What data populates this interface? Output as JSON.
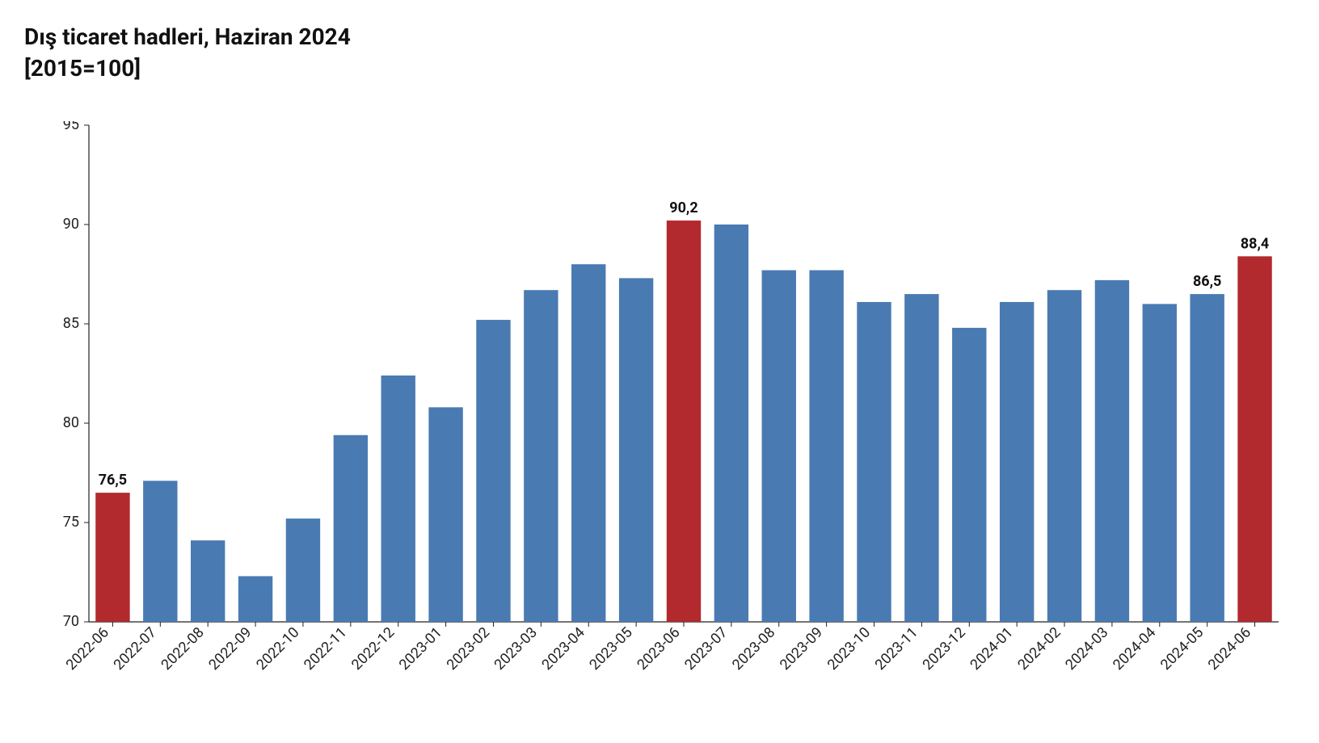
{
  "title_line1": "Dış ticaret hadleri, Haziran 2024",
  "title_line2": "[2015=100]",
  "chart": {
    "type": "bar",
    "background_color": "#ffffff",
    "axis_color": "#222222",
    "y": {
      "min": 70,
      "max": 95,
      "tick_step": 5,
      "ticks": [
        70,
        75,
        80,
        85,
        90,
        95
      ],
      "tick_fontsize": 18,
      "tick_color": "#222222"
    },
    "x": {
      "label_fontsize": 18,
      "label_color": "#222222",
      "label_rotation_deg": -45
    },
    "bar": {
      "default_color": "#4a7ab2",
      "highlight_color": "#b2292e",
      "group_gap_ratio": 0.28,
      "label_fontsize": 18,
      "label_fontweight": 700,
      "label_color": "#111111"
    },
    "categories": [
      "2022-06",
      "2022-07",
      "2022-08",
      "2022-09",
      "2022-10",
      "2022-11",
      "2022-12",
      "2023-01",
      "2023-02",
      "2023-03",
      "2023-04",
      "2023-05",
      "2023-06",
      "2023-07",
      "2023-08",
      "2023-09",
      "2023-10",
      "2023-11",
      "2023-12",
      "2024-01",
      "2024-02",
      "2024-03",
      "2024-04",
      "2024-05",
      "2024-06"
    ],
    "values": [
      76.5,
      77.1,
      74.1,
      72.3,
      75.2,
      79.4,
      82.4,
      80.8,
      85.2,
      86.7,
      88.0,
      87.3,
      90.2,
      90.0,
      87.7,
      87.7,
      86.1,
      86.5,
      84.8,
      86.1,
      86.7,
      87.2,
      86.0,
      86.5,
      88.4
    ],
    "highlight_indices": [
      0,
      12,
      24
    ],
    "value_labels": [
      {
        "index": 0,
        "text": "76,5"
      },
      {
        "index": 12,
        "text": "90,2"
      },
      {
        "index": 23,
        "text": "86,5"
      },
      {
        "index": 24,
        "text": "88,4"
      }
    ]
  }
}
